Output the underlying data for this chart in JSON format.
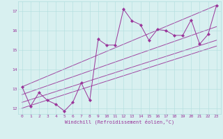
{
  "xlabel": "Windchill (Refroidissement éolien,°C)",
  "x_data": [
    0,
    1,
    2,
    3,
    4,
    5,
    6,
    7,
    8,
    9,
    10,
    11,
    12,
    13,
    14,
    15,
    16,
    17,
    18,
    19,
    20,
    21,
    22,
    23
  ],
  "y_data": [
    13.1,
    12.1,
    12.8,
    12.4,
    12.2,
    11.85,
    12.3,
    13.3,
    12.4,
    15.55,
    15.25,
    15.25,
    17.1,
    16.5,
    16.3,
    15.5,
    16.05,
    16.0,
    15.75,
    15.75,
    16.55,
    15.3,
    15.8,
    17.3
  ],
  "trend_lines": [
    {
      "x0": 0,
      "y0": 12.0,
      "x1": 23,
      "y1": 15.2
    },
    {
      "x0": 0,
      "y0": 12.3,
      "x1": 23,
      "y1": 15.5
    },
    {
      "x0": 0,
      "y0": 12.7,
      "x1": 23,
      "y1": 16.2
    },
    {
      "x0": 0,
      "y0": 13.1,
      "x1": 23,
      "y1": 17.3
    }
  ],
  "line_color": "#993399",
  "marker_color": "#993399",
  "bg_color": "#d8f0f0",
  "grid_color": "#b0dede",
  "xlim": [
    -0.5,
    23.5
  ],
  "ylim": [
    11.7,
    17.5
  ],
  "yticks": [
    12,
    13,
    14,
    15,
    16,
    17
  ],
  "xticks": [
    0,
    1,
    2,
    3,
    4,
    5,
    6,
    7,
    8,
    9,
    10,
    11,
    12,
    13,
    14,
    15,
    16,
    17,
    18,
    19,
    20,
    21,
    22,
    23
  ],
  "xlabel_color": "#993399",
  "tick_color": "#993399",
  "tick_fontsize": 4.5,
  "xlabel_fontsize": 5.0,
  "line_width": 0.7,
  "marker_size": 2.2
}
